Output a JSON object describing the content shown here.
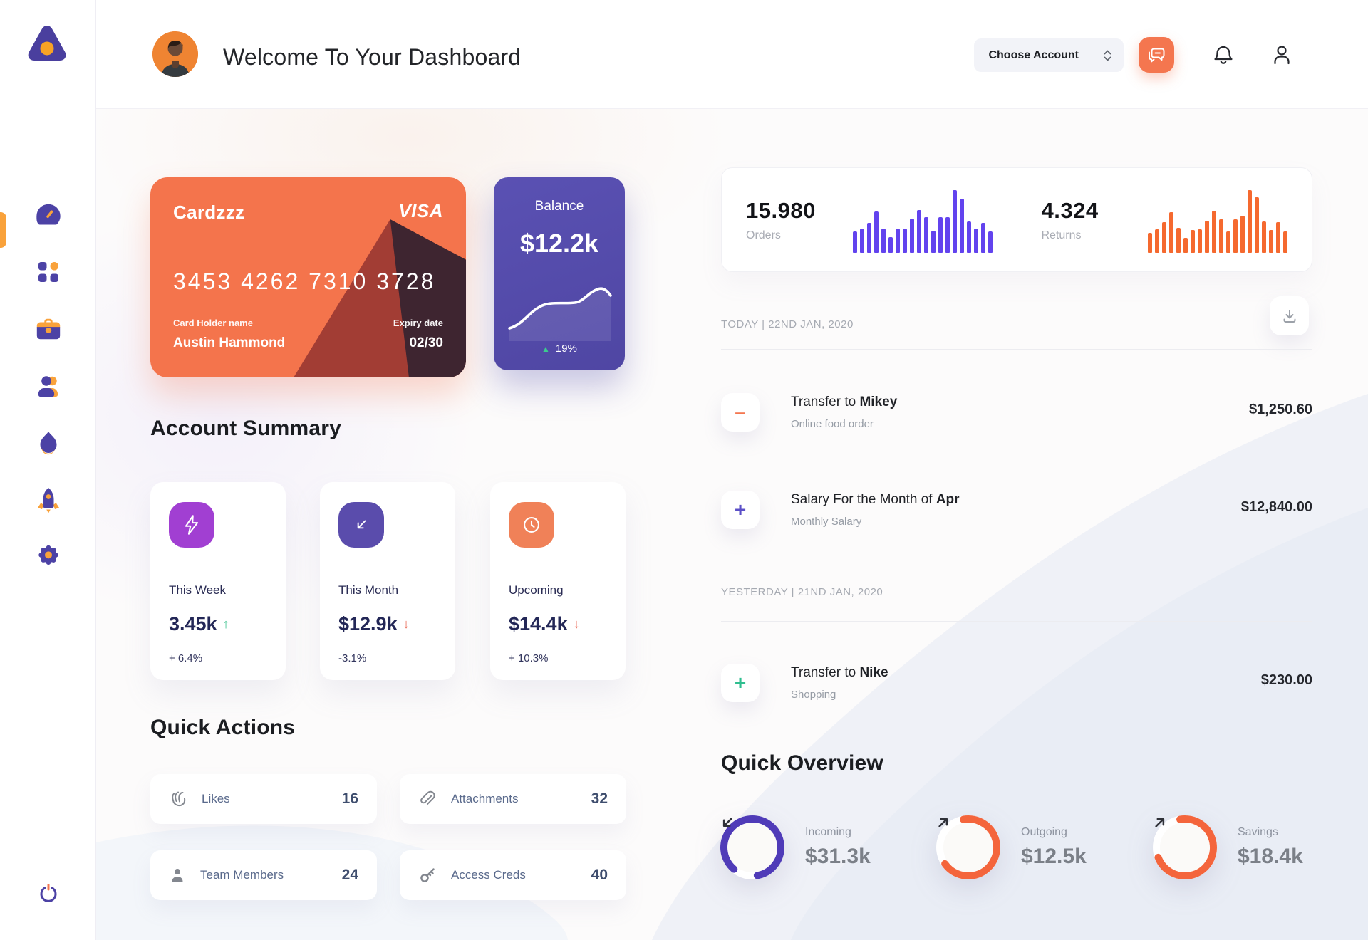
{
  "colors": {
    "accent_orange": "#F9A23B",
    "primary_purple": "#4C42A5",
    "card_orange": "#F4744C",
    "balance_purple": "#544CA8",
    "green_up": "#2EBD85",
    "red_down": "#E8604C"
  },
  "header": {
    "title": "Welcome To Your Dashboard",
    "account_selector_label": "Choose Account"
  },
  "sidebar": {
    "items": [
      {
        "name": "dashboard",
        "icon": "speedometer-icon",
        "active": true
      },
      {
        "name": "apps",
        "icon": "grid-icon",
        "active": false
      },
      {
        "name": "portfolio",
        "icon": "briefcase-icon",
        "active": false
      },
      {
        "name": "contacts",
        "icon": "users-icon",
        "active": false
      },
      {
        "name": "trending",
        "icon": "flame-icon",
        "active": false
      },
      {
        "name": "boost",
        "icon": "rocket-icon",
        "active": false
      },
      {
        "name": "settings",
        "icon": "gear-icon",
        "active": false
      }
    ],
    "power_icon": "power-icon"
  },
  "wallet_card": {
    "name": "Cardzzz",
    "brand": "VISA",
    "number": "3453 4262 7310 3728",
    "holder_label": "Card Holder name",
    "holder": "Austin Hammond",
    "expiry_label": "Expiry date",
    "expiry": "02/30"
  },
  "balance_card": {
    "label": "Balance",
    "value": "$12.2k",
    "delta": "19%",
    "delta_arrow": "▲",
    "delta_color": "#3BCB8E"
  },
  "stats": {
    "orders": {
      "value": "15.980",
      "label": "Orders",
      "color": "#6243EE",
      "bars": [
        30,
        34,
        42,
        58,
        34,
        22,
        34,
        34,
        48,
        60,
        50,
        31,
        50,
        50,
        88,
        76,
        44,
        34,
        42,
        30
      ]
    },
    "returns": {
      "value": "4.324",
      "label": "Returns",
      "color": "#F5692F",
      "bars": [
        28,
        33,
        43,
        57,
        35,
        21,
        32,
        33,
        45,
        59,
        47,
        30,
        47,
        52,
        88,
        78,
        44,
        32,
        43,
        30
      ]
    }
  },
  "transactions": {
    "today_header": "TODAY | 22ND JAN, 2020",
    "yesterday_header": "YESTERDAY | 21ND JAN, 2020",
    "rows": [
      {
        "icon_glyph": "–",
        "icon_color": "#F4764F",
        "title_prefix": "Transfer to ",
        "title_bold": "Mikey",
        "subtitle": "Online food order",
        "amount": "$1,250.60"
      },
      {
        "icon_glyph": "+",
        "icon_color": "#5B4FC7",
        "title_prefix": "Salary For the Month of ",
        "title_bold": "Apr",
        "subtitle": "Monthly Salary",
        "amount": "$12,840.00"
      },
      {
        "icon_glyph": "+",
        "icon_color": "#2FBE8F",
        "title_prefix": "Transfer to ",
        "title_bold": "Nike",
        "subtitle": "Shopping",
        "amount": "$230.00"
      }
    ]
  },
  "account_summary": {
    "title": "Account Summary",
    "cards": [
      {
        "icon": "bolt-icon",
        "icon_bg": "#A13FD2",
        "period": "This Week",
        "value": "3.45k",
        "arrow": "↑",
        "delta": "+ 6.4%"
      },
      {
        "icon": "arrow-down-left-icon",
        "icon_bg": "#5A4CAC",
        "period": "This Month",
        "value": "$12.9k",
        "arrow": "↓",
        "delta": "-3.1%"
      },
      {
        "icon": "clock-icon",
        "icon_bg": "#F08158",
        "period": "Upcoming",
        "value": "$14.4k",
        "arrow": "↓",
        "delta": "+ 10.3%"
      }
    ]
  },
  "quick_actions": {
    "title": "Quick Actions",
    "items": [
      {
        "icon": "clap-icon",
        "label": "Likes",
        "count": "16"
      },
      {
        "icon": "paperclip-icon",
        "label": "Attachments",
        "count": "32"
      },
      {
        "icon": "person-icon",
        "label": "Team Members",
        "count": "24"
      },
      {
        "icon": "key-icon",
        "label": "Access Creds",
        "count": "40"
      }
    ]
  },
  "quick_overview": {
    "title": "Quick Overview",
    "items": [
      {
        "label": "Incoming",
        "value": "$31.3k",
        "ring_color": "#4F3BB8",
        "percent": 86,
        "rotate": 130,
        "arrow": "down-left"
      },
      {
        "label": "Outgoing",
        "value": "$12.5k",
        "ring_color": "#F4653C",
        "percent": 68,
        "rotate": -100,
        "arrow": "up-right"
      },
      {
        "label": "Savings",
        "value": "$18.4k",
        "ring_color": "#F4653C",
        "percent": 72,
        "rotate": -100,
        "arrow": "up-right"
      }
    ]
  },
  "chart_data": [
    {
      "type": "bar",
      "title": "Orders mini bar chart",
      "values": [
        30,
        34,
        42,
        58,
        34,
        22,
        34,
        34,
        48,
        60,
        50,
        31,
        50,
        50,
        88,
        76,
        44,
        34,
        42,
        30
      ],
      "color": "#6243EE"
    },
    {
      "type": "bar",
      "title": "Returns mini bar chart",
      "values": [
        28,
        33,
        43,
        57,
        35,
        21,
        32,
        33,
        45,
        59,
        47,
        30,
        47,
        52,
        88,
        78,
        44,
        32,
        43,
        30
      ],
      "color": "#F5692F"
    },
    {
      "type": "line",
      "title": "Balance trend",
      "values": [
        20,
        24,
        35,
        48,
        55,
        57,
        57,
        58,
        62,
        78,
        74
      ],
      "color": "#FFFFFF"
    }
  ]
}
